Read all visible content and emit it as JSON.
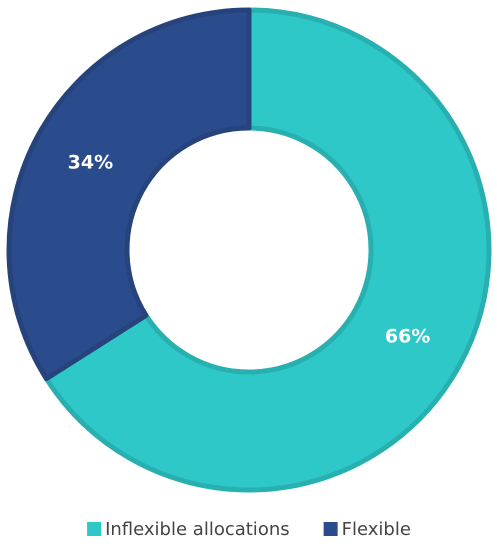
{
  "chart_data": {
    "type": "donut",
    "categories": [
      "Inflexible allocations",
      "Flexible"
    ],
    "values": [
      66,
      34
    ],
    "value_labels": [
      "66%",
      "34%"
    ],
    "colors": [
      "#2ec8c8",
      "#2b4c8c"
    ],
    "legend": "bottom"
  }
}
